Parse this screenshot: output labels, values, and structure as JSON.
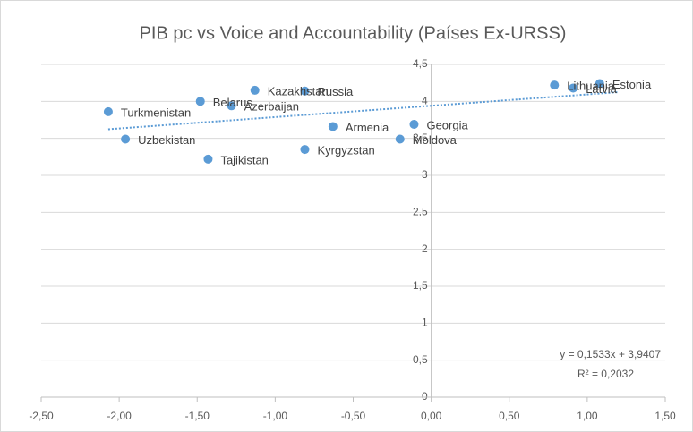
{
  "chart_data": {
    "type": "scatter",
    "title": "PIB pc vs Voice and Accountability (Países Ex-URSS)",
    "color": "#5b9bd5",
    "points": [
      {
        "label": "Turkmenistan",
        "x": -2.07,
        "y": 3.86
      },
      {
        "label": "Uzbekistan",
        "x": -1.96,
        "y": 3.49
      },
      {
        "label": "Belarus",
        "x": -1.48,
        "y": 4.0
      },
      {
        "label": "Azerbaijan",
        "x": -1.28,
        "y": 3.94
      },
      {
        "label": "Tajikistan",
        "x": -1.43,
        "y": 3.22
      },
      {
        "label": "Kazakhstan",
        "x": -1.13,
        "y": 4.15
      },
      {
        "label": "Russia",
        "x": -0.81,
        "y": 4.14
      },
      {
        "label": "Kyrgyzstan",
        "x": -0.81,
        "y": 3.35
      },
      {
        "label": "Armenia",
        "x": -0.63,
        "y": 3.66
      },
      {
        "label": "Georgia",
        "x": -0.11,
        "y": 3.69
      },
      {
        "label": "Moldova",
        "x": -0.2,
        "y": 3.49
      },
      {
        "label": "Lithuania",
        "x": 0.79,
        "y": 4.22
      },
      {
        "label": "Latvia",
        "x": 0.91,
        "y": 4.18
      },
      {
        "label": "Estonia",
        "x": 1.08,
        "y": 4.24
      }
    ],
    "trendline": {
      "slope": 0.1533,
      "intercept": 3.9407,
      "equation": "y = 0,1533x + 3,9407",
      "r_squared": "R² = 0,2032"
    },
    "xlim": [
      -2.5,
      1.5
    ],
    "xticks": [
      {
        "value": -2.5,
        "label": "-2,50"
      },
      {
        "value": -2.0,
        "label": "-2,00"
      },
      {
        "value": -1.5,
        "label": "-1,50"
      },
      {
        "value": -1.0,
        "label": "-1,00"
      },
      {
        "value": -0.5,
        "label": "-0,50"
      },
      {
        "value": 0,
        "label": "0,00"
      },
      {
        "value": 0.5,
        "label": "0,50"
      },
      {
        "value": 1.0,
        "label": "1,00"
      },
      {
        "value": 1.5,
        "label": "1,50"
      }
    ],
    "ylim": [
      0,
      4.5
    ],
    "yticks": [
      0,
      {
        "value": 0.5,
        "label": "0,5"
      },
      1,
      {
        "value": 1.5,
        "label": "1,5"
      },
      2,
      {
        "value": 2.5,
        "label": "2,5"
      },
      3,
      {
        "value": 3.5,
        "label": "3,5"
      },
      4,
      {
        "value": 4.5,
        "label": "4,5"
      }
    ],
    "grid": true
  }
}
